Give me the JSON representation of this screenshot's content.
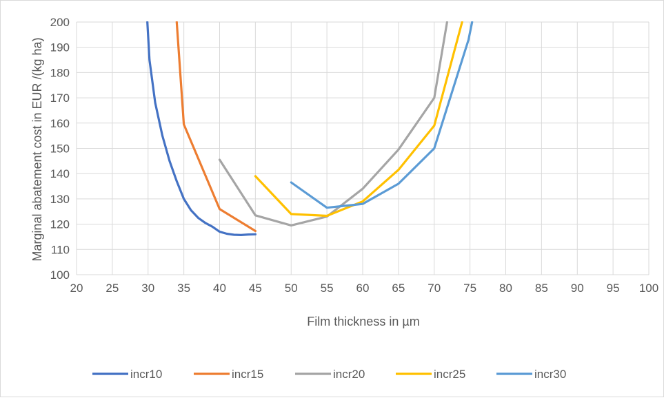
{
  "chart_data": {
    "type": "line",
    "title": "",
    "xlabel": "Film thickness in µm",
    "ylabel": "Marginal abatement cost in EUR /(kg ha)",
    "xlim": [
      20,
      100
    ],
    "ylim": [
      100,
      200
    ],
    "x_ticks": [
      20,
      25,
      30,
      35,
      40,
      45,
      50,
      55,
      60,
      65,
      70,
      75,
      80,
      85,
      90,
      95,
      100
    ],
    "y_ticks": [
      100,
      110,
      120,
      130,
      140,
      150,
      160,
      170,
      180,
      190,
      200
    ],
    "grid": true,
    "legend_position": "bottom",
    "series": [
      {
        "name": "incr10",
        "color": "#4472C4",
        "points": [
          [
            29.9,
            200
          ],
          [
            30.2,
            185
          ],
          [
            31,
            168
          ],
          [
            32,
            155
          ],
          [
            33,
            145
          ],
          [
            34,
            137
          ],
          [
            35,
            130
          ],
          [
            36,
            125.5
          ],
          [
            37,
            122.5
          ],
          [
            38,
            120.5
          ],
          [
            39,
            119
          ],
          [
            40,
            117
          ],
          [
            41,
            116.2
          ],
          [
            42,
            115.8
          ],
          [
            43,
            115.7
          ],
          [
            44,
            115.9
          ],
          [
            45,
            116
          ]
        ]
      },
      {
        "name": "incr15",
        "color": "#ED7D31",
        "points": [
          [
            34,
            200
          ],
          [
            35,
            159.5
          ],
          [
            40,
            126
          ],
          [
            45,
            117.3
          ]
        ]
      },
      {
        "name": "incr20",
        "color": "#A5A5A5",
        "points": [
          [
            40,
            145.5
          ],
          [
            45,
            123.5
          ],
          [
            50,
            119.5
          ],
          [
            55,
            123
          ],
          [
            60,
            134
          ],
          [
            65,
            149.5
          ],
          [
            70,
            170
          ],
          [
            71.8,
            200
          ]
        ]
      },
      {
        "name": "incr25",
        "color": "#FFC000",
        "points": [
          [
            45,
            139
          ],
          [
            50,
            124
          ],
          [
            55,
            123.3
          ],
          [
            60,
            129
          ],
          [
            65,
            141.5
          ],
          [
            70,
            159
          ],
          [
            73.9,
            200
          ]
        ]
      },
      {
        "name": "incr30",
        "color": "#5B9BD5",
        "points": [
          [
            50,
            136.5
          ],
          [
            55,
            126.5
          ],
          [
            60,
            128
          ],
          [
            65,
            136
          ],
          [
            70,
            150
          ],
          [
            74.8,
            193
          ],
          [
            75.3,
            200
          ]
        ]
      }
    ]
  }
}
